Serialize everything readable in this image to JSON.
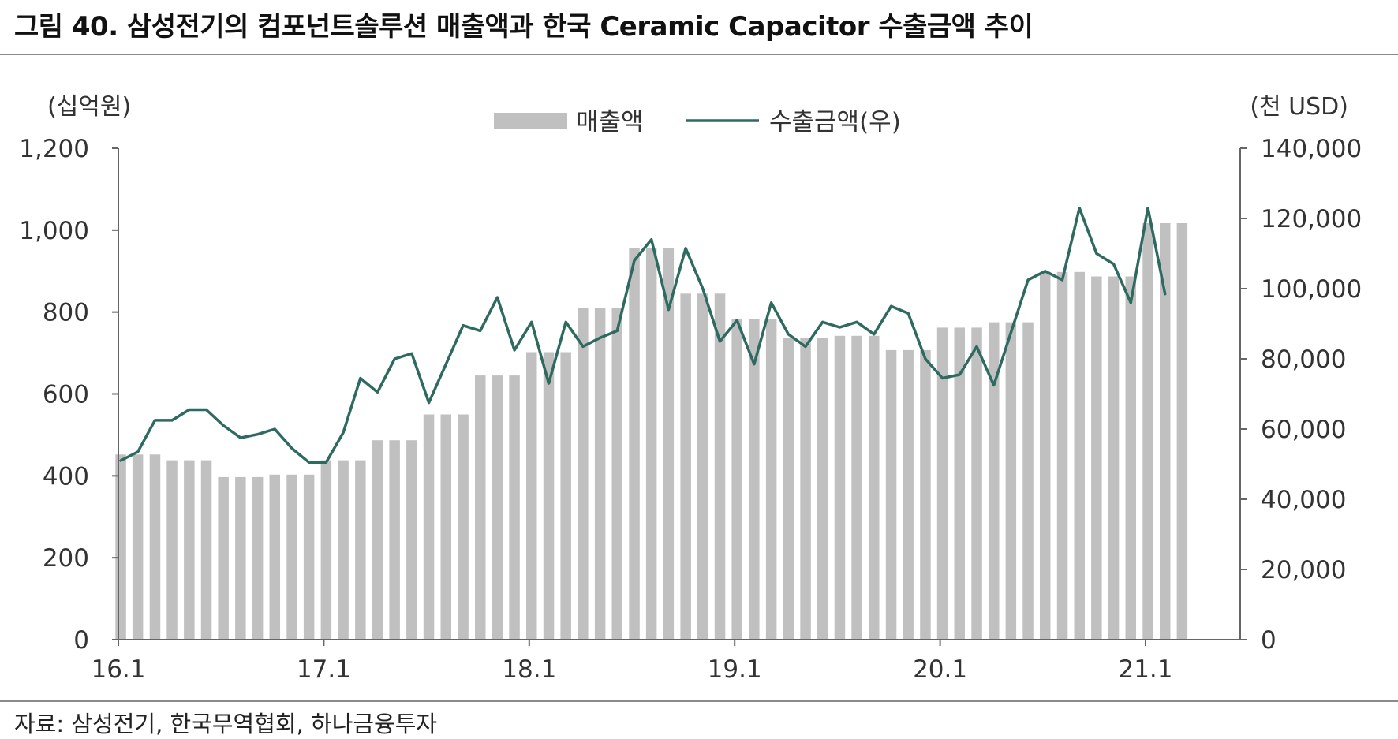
{
  "figure": {
    "title": "그림 40. 삼성전기의 컴포넌트솔루션 매출액과 한국 Ceramic Capacitor 수출금액 추이",
    "source": "자료: 삼성전기, 한국무역협회, 하나금융투자"
  },
  "chart_data": {
    "type": "bar+line",
    "left_axis": {
      "unit": "(십억원)",
      "ylim": [
        0,
        1200
      ],
      "ticks": [
        0,
        200,
        400,
        600,
        800,
        1000,
        1200
      ],
      "tick_labels": [
        "0",
        "200",
        "400",
        "600",
        "800",
        "1,000",
        "1,200"
      ]
    },
    "right_axis": {
      "unit": "(천 USD)",
      "ylim": [
        0,
        140000
      ],
      "ticks": [
        0,
        20000,
        40000,
        60000,
        80000,
        100000,
        120000,
        140000
      ],
      "tick_labels": [
        "0",
        "20,000",
        "40,000",
        "60,000",
        "80,000",
        "100,000",
        "120,000",
        "140,000"
      ]
    },
    "x_tick_labels": [
      "16.1",
      "17.1",
      "18.1",
      "19.1",
      "20.1",
      "21.1"
    ],
    "x_tick_month_index": [
      0,
      12,
      24,
      36,
      48,
      60
    ],
    "grid": false,
    "legend_position": "top-center",
    "series": [
      {
        "name": "매출액",
        "type": "bar",
        "axis": "left",
        "color": "#c0c0c0",
        "values": [
          452,
          452,
          452,
          438,
          438,
          438,
          397,
          397,
          397,
          403,
          403,
          403,
          438,
          438,
          438,
          487,
          487,
          487,
          550,
          550,
          550,
          645,
          645,
          645,
          702,
          702,
          702,
          810,
          810,
          810,
          957,
          957,
          957,
          845,
          845,
          845,
          782,
          782,
          782,
          737,
          737,
          737,
          742,
          742,
          742,
          707,
          707,
          707,
          762,
          762,
          762,
          775,
          775,
          775,
          898,
          898,
          898,
          887,
          887,
          887,
          1017,
          1017,
          1017
        ]
      },
      {
        "name": "수출금액(우)",
        "type": "line",
        "axis": "right",
        "color": "#2e6a60",
        "values": [
          51000,
          53500,
          62500,
          62500,
          65500,
          65500,
          61000,
          57500,
          58500,
          60000,
          54500,
          50500,
          50500,
          59000,
          74500,
          70500,
          80000,
          81500,
          67500,
          78500,
          89500,
          88000,
          97500,
          82500,
          90500,
          73000,
          90500,
          83500,
          86000,
          88000,
          108000,
          114000,
          94000,
          111500,
          100000,
          85000,
          91000,
          78500,
          96000,
          87000,
          83500,
          90500,
          89000,
          90500,
          87000,
          95000,
          93000,
          80000,
          74500,
          75500,
          83500,
          72500,
          87500,
          102500,
          105000,
          102500,
          123000,
          110000,
          107000,
          96000,
          123000,
          98500
        ]
      }
    ]
  }
}
